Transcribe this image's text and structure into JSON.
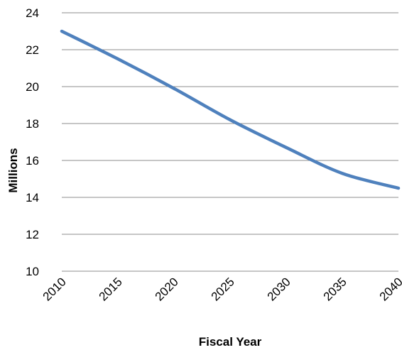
{
  "chart_data": {
    "type": "line",
    "title": "",
    "xlabel": "Fiscal Year",
    "ylabel": "Millions",
    "x": [
      2010,
      2015,
      2020,
      2025,
      2030,
      2035,
      2040
    ],
    "xlim": [
      2010,
      2040
    ],
    "ylim": [
      10,
      24
    ],
    "y_ticks": [
      10,
      12,
      14,
      16,
      18,
      20,
      22,
      24
    ],
    "x_ticks": [
      2010,
      2015,
      2020,
      2025,
      2030,
      2035,
      2040
    ],
    "grid": true,
    "legend": "none",
    "series": [
      {
        "color": "#4f81bd",
        "values": [
          23.0,
          21.5,
          19.9,
          18.2,
          16.7,
          15.3,
          14.5
        ]
      }
    ]
  }
}
